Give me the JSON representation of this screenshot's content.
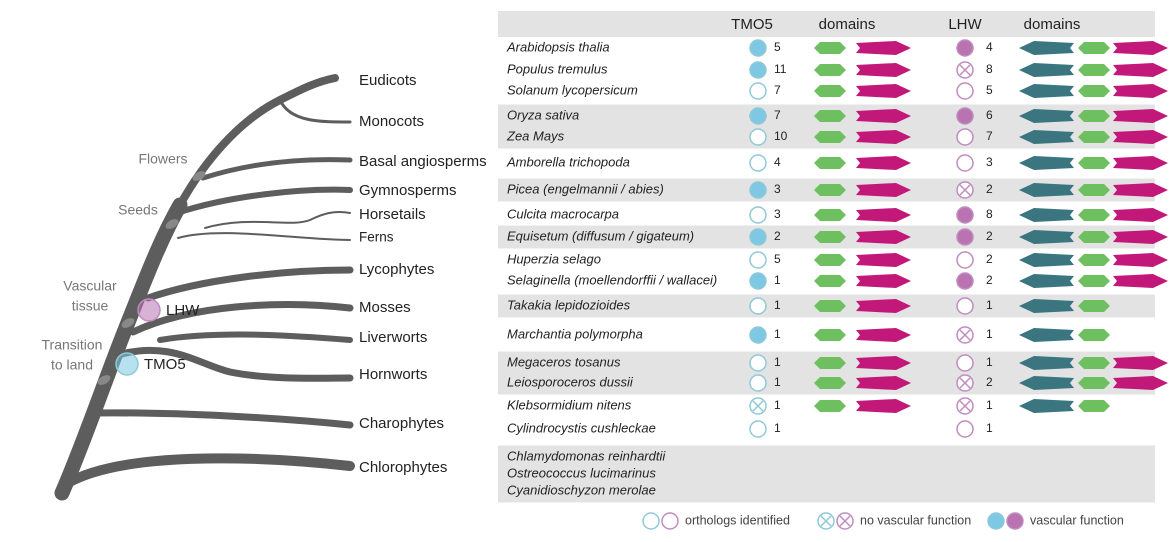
{
  "tree": {
    "clades": [
      "Eudicots",
      "Monocots",
      "Basal angiosperms",
      "Gymnosperms",
      "Horsetails",
      "Ferns",
      "Lycophytes",
      "Mosses",
      "Liverworts",
      "Hornworts",
      "Charophytes",
      "Chlorophytes"
    ],
    "annotations": [
      [
        "Flowers"
      ],
      [
        "Seeds"
      ],
      [
        "Vascular",
        "tissue"
      ],
      [
        "Transition",
        "to land"
      ]
    ],
    "markers": [
      "LHW",
      "TMO5"
    ]
  },
  "table": {
    "headers": [
      "TMO5",
      "domains",
      "LHW",
      "domains"
    ],
    "groups": [
      {
        "shaded": false,
        "rows": [
          {
            "species": "Arabidopsis thalia",
            "tmo5": {
              "status": "filled",
              "count": 5,
              "domains": [
                "green",
                "magenta"
              ]
            },
            "lhw": {
              "status": "filled",
              "count": 4,
              "domains": [
                "teal",
                "green",
                "magenta"
              ]
            }
          },
          {
            "species": "Populus tremulus",
            "tmo5": {
              "status": "filled",
              "count": 11,
              "domains": [
                "green",
                "magenta"
              ]
            },
            "lhw": {
              "status": "cross",
              "count": 8,
              "domains": [
                "teal",
                "green",
                "magenta"
              ]
            }
          },
          {
            "species": "Solanum lycopersicum",
            "tmo5": {
              "status": "open",
              "count": 7,
              "domains": [
                "green",
                "magenta"
              ]
            },
            "lhw": {
              "status": "open",
              "count": 5,
              "domains": [
                "teal",
                "green",
                "magenta"
              ]
            }
          }
        ]
      },
      {
        "shaded": true,
        "rows": [
          {
            "species": "Oryza sativa",
            "tmo5": {
              "status": "filled",
              "count": 7,
              "domains": [
                "green",
                "magenta"
              ]
            },
            "lhw": {
              "status": "filled",
              "count": 6,
              "domains": [
                "teal",
                "green",
                "magenta"
              ]
            }
          },
          {
            "species": "Zea Mays",
            "tmo5": {
              "status": "open",
              "count": 10,
              "domains": [
                "green",
                "magenta"
              ]
            },
            "lhw": {
              "status": "open",
              "count": 7,
              "domains": [
                "teal",
                "green",
                "magenta"
              ]
            }
          }
        ]
      },
      {
        "shaded": false,
        "rows": [
          {
            "species": "Amborella trichopoda",
            "tmo5": {
              "status": "open",
              "count": 4,
              "domains": [
                "green",
                "magenta"
              ]
            },
            "lhw": {
              "status": "open",
              "count": 3,
              "domains": [
                "teal",
                "green",
                "magenta"
              ]
            }
          }
        ]
      },
      {
        "shaded": true,
        "rows": [
          {
            "species": "Picea (engelmannii / abies)",
            "tmo5": {
              "status": "filled",
              "count": 3,
              "domains": [
                "green",
                "magenta"
              ]
            },
            "lhw": {
              "status": "cross",
              "count": 2,
              "domains": [
                "teal",
                "green",
                "magenta"
              ]
            }
          }
        ]
      },
      {
        "shaded": false,
        "rows": [
          {
            "species": "Culcita macrocarpa",
            "tmo5": {
              "status": "open",
              "count": 3,
              "domains": [
                "green",
                "magenta"
              ]
            },
            "lhw": {
              "status": "filled",
              "count": 8,
              "domains": [
                "teal",
                "green",
                "magenta"
              ]
            }
          }
        ]
      },
      {
        "shaded": true,
        "rows": [
          {
            "species": "Equisetum (diffusum / gigateum)",
            "tmo5": {
              "status": "filled",
              "count": 2,
              "domains": [
                "green",
                "magenta"
              ]
            },
            "lhw": {
              "status": "filled",
              "count": 2,
              "domains": [
                "teal",
                "green",
                "magenta"
              ]
            }
          }
        ]
      },
      {
        "shaded": false,
        "rows": [
          {
            "species": "Huperzia selago",
            "tmo5": {
              "status": "open",
              "count": 5,
              "domains": [
                "green",
                "magenta"
              ]
            },
            "lhw": {
              "status": "open",
              "count": 2,
              "domains": [
                "teal",
                "green",
                "magenta"
              ]
            }
          },
          {
            "species": "Selaginella (moellendorffii / wallacei)",
            "tmo5": {
              "status": "filled",
              "count": 1,
              "domains": [
                "green",
                "magenta"
              ]
            },
            "lhw": {
              "status": "filled",
              "count": 2,
              "domains": [
                "teal",
                "green",
                "magenta"
              ]
            }
          }
        ]
      },
      {
        "shaded": true,
        "rows": [
          {
            "species": "Takakia lepidozioides",
            "tmo5": {
              "status": "open",
              "count": 1,
              "domains": [
                "green",
                "magenta"
              ]
            },
            "lhw": {
              "status": "open",
              "count": 1,
              "domains": [
                "teal",
                "green"
              ]
            }
          }
        ]
      },
      {
        "shaded": false,
        "rows": [
          {
            "species": "Marchantia polymorpha",
            "tmo5": {
              "status": "filled",
              "count": 1,
              "domains": [
                "green",
                "magenta"
              ]
            },
            "lhw": {
              "status": "cross",
              "count": 1,
              "domains": [
                "teal",
                "green"
              ]
            }
          }
        ]
      },
      {
        "shaded": true,
        "rows": [
          {
            "species": "Megaceros tosanus",
            "tmo5": {
              "status": "open",
              "count": 1,
              "domains": [
                "green",
                "magenta"
              ]
            },
            "lhw": {
              "status": "open",
              "count": 1,
              "domains": [
                "teal",
                "green",
                "magenta"
              ]
            }
          },
          {
            "species": "Leiosporoceros dussii",
            "tmo5": {
              "status": "open",
              "count": 1,
              "domains": [
                "green",
                "magenta"
              ]
            },
            "lhw": {
              "status": "cross",
              "count": 2,
              "domains": [
                "teal",
                "green",
                "magenta"
              ]
            }
          }
        ]
      },
      {
        "shaded": false,
        "rows": [
          {
            "species": "Klebsormidium nitens",
            "tmo5": {
              "status": "cross",
              "count": 1,
              "domains": [
                "green",
                "magenta"
              ]
            },
            "lhw": {
              "status": "cross",
              "count": 1,
              "domains": [
                "teal",
                "green"
              ]
            }
          },
          {
            "species": "Cylindrocystis cushleckae",
            "tmo5": {
              "status": "open",
              "count": 1,
              "domains": []
            },
            "lhw": {
              "status": "open",
              "count": 1,
              "domains": []
            }
          }
        ]
      },
      {
        "shaded": true,
        "rows": [
          {
            "species": "Chlamydomonas reinhardtii"
          },
          {
            "species": "Ostreococcus lucimarinus"
          },
          {
            "species": "Cyanidioschyzon merolae"
          }
        ]
      }
    ]
  },
  "colors": {
    "tmo5": "#7ec8e3",
    "tmo5_stroke": "#8fc9d8",
    "lhw": "#b873b0",
    "lhw_stroke": "#c08cc0",
    "green": "#6dbf5f",
    "magenta": "#c2187a",
    "teal": "#3b7580",
    "shade": "#e3e3e3"
  },
  "legend": [
    {
      "status": "open",
      "label": "orthologs identified"
    },
    {
      "status": "cross",
      "label": "no vascular function"
    },
    {
      "status": "filled",
      "label": "vascular function"
    }
  ]
}
